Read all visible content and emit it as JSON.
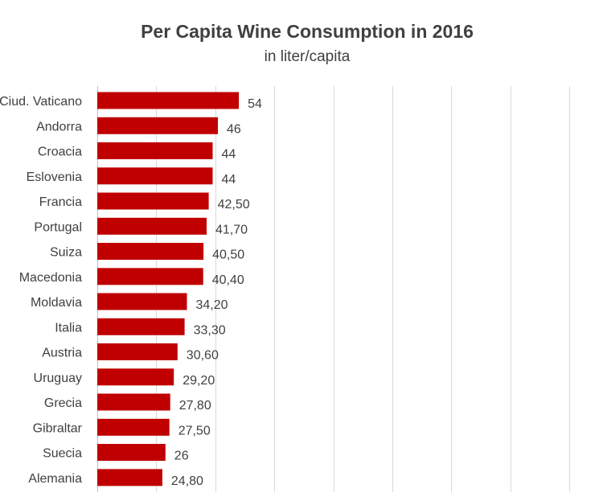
{
  "chart_data": {
    "type": "bar",
    "orientation": "horizontal",
    "title": "Per Capita Wine Consumption in 2016",
    "subtitle": "in liter/capita",
    "xlabel": "",
    "ylabel": "",
    "xlim": [
      0,
      180
    ],
    "grid": true,
    "bar_color": "#c00000",
    "categories": [
      "Ciud. Vaticano",
      "Andorra",
      "Croacia",
      "Eslovenia",
      "Francia",
      "Portugal",
      "Suiza",
      "Macedonia",
      "Moldavia",
      "Italia",
      "Austria",
      "Uruguay",
      "Grecia",
      "Gibraltar",
      "Suecia",
      "Alemania"
    ],
    "values": [
      54,
      46,
      44,
      44,
      42.5,
      41.7,
      40.5,
      40.4,
      34.2,
      33.3,
      30.6,
      29.2,
      27.8,
      27.5,
      26,
      24.8
    ],
    "value_labels": [
      "54",
      "46",
      "44",
      "44",
      "42,50",
      "41,70",
      "40,50",
      "40,40",
      "34,20",
      "33,30",
      "30,60",
      "29,20",
      "27,80",
      "27,50",
      "26",
      "24,80"
    ]
  }
}
